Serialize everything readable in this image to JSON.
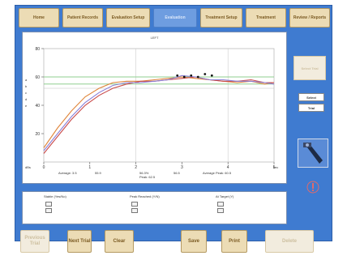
{
  "tabs": [
    {
      "label": "Home",
      "active": false
    },
    {
      "label": "Patient Records",
      "active": false
    },
    {
      "label": "Evaluation Setup",
      "active": false
    },
    {
      "label": "Evaluation",
      "active": true
    },
    {
      "label": "Treatment Setup",
      "active": false
    },
    {
      "label": "Treatment",
      "active": false
    },
    {
      "label": "Review / Reports",
      "active": false
    }
  ],
  "chart": {
    "title": "LEFT",
    "x_unit": "sec",
    "y_unit": "dBs",
    "y_axis_letters": [
      "a",
      "b",
      "c",
      "d",
      "e"
    ],
    "x_ticks": [
      "0",
      "1",
      "2",
      "3",
      "4",
      "5"
    ],
    "y_ticks": [
      "80",
      "60",
      "40",
      "20"
    ]
  },
  "stats": {
    "average": "Average: 3.5",
    "value": "55.9",
    "peak_block": "56.3%",
    "peak_label": "Peak: 62.5",
    "avg_block": "56.5",
    "average_peak": "Average Peak: 60.5"
  },
  "legend_columns": [
    {
      "title": "Stable (Yes/No)",
      "items": [
        "",
        ""
      ]
    },
    {
      "title": "Peak Reached (Y/N)",
      "items": [
        "",
        ""
      ]
    },
    {
      "title": "At Target (Y)",
      "items": [
        "",
        ""
      ]
    }
  ],
  "side": {
    "select_trial_label": "Select Trial",
    "select_label": "Select",
    "trial_label": "Trial"
  },
  "bottom_buttons": [
    {
      "label": "Previous Trial",
      "disabled": true
    },
    {
      "label": "Next Trial",
      "disabled": false
    },
    {
      "label": "Clear",
      "disabled": false
    },
    {
      "label": "Save",
      "disabled": false
    },
    {
      "label": "Print",
      "disabled": false
    },
    {
      "label": "Delete",
      "disabled": true
    }
  ],
  "colors": {
    "frame": "#3f7bd0",
    "tab": "#ecdcb5",
    "tab_active": "#6e9de0",
    "trace_orange": "#e0853a",
    "trace_red": "#c94a4a",
    "trace_purple": "#8a7fd6",
    "target_green": "#8fcf8f"
  },
  "chart_data": {
    "type": "line",
    "title": "LEFT",
    "xlabel": "sec",
    "ylabel": "dBs",
    "xlim": [
      0,
      5
    ],
    "ylim": [
      0,
      80
    ],
    "grid": false,
    "series": [
      {
        "x": [
          0,
          0.3,
          0.6,
          0.9,
          1.2,
          1.5,
          1.8,
          2.1,
          2.4,
          2.7,
          3.0,
          3.3,
          3.6,
          3.9,
          4.2,
          4.5,
          4.8,
          5.0
        ],
        "values": [
          10,
          24,
          36,
          46,
          52,
          56,
          57,
          57,
          58,
          59,
          60,
          59,
          58,
          57,
          56,
          57,
          55,
          56
        ]
      },
      {
        "x": [
          0,
          0.3,
          0.6,
          0.9,
          1.2,
          1.5,
          1.8,
          2.1,
          2.4,
          2.7,
          3.0,
          3.3,
          3.6,
          3.9,
          4.2,
          4.5,
          4.8,
          5.0
        ],
        "values": [
          6,
          18,
          30,
          40,
          47,
          52,
          55,
          57,
          57,
          58,
          59,
          60,
          58,
          57,
          57,
          58,
          56,
          56
        ]
      },
      {
        "x": [
          0,
          0.3,
          0.6,
          0.9,
          1.2,
          1.5,
          1.8,
          2.1,
          2.4,
          2.7,
          3.0,
          3.3,
          3.6,
          3.9,
          4.2,
          4.5,
          4.8,
          5.0
        ],
        "values": [
          8,
          20,
          32,
          42,
          49,
          54,
          56,
          56,
          57,
          58,
          61,
          60,
          58,
          58,
          57,
          57,
          56,
          55
        ]
      }
    ],
    "reference_lines": [
      60,
      55
    ]
  }
}
